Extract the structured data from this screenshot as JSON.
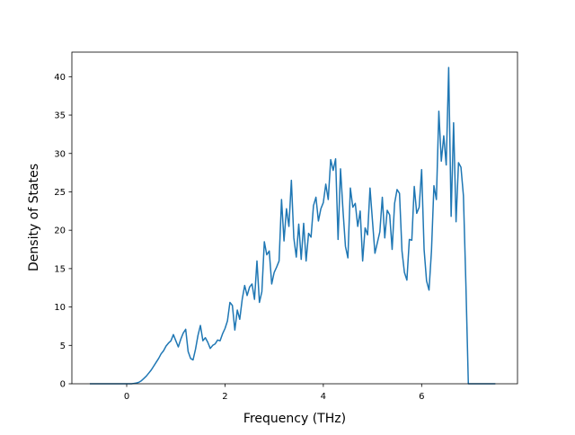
{
  "chart_data": {
    "type": "line",
    "xlabel": "Frequency (THz)",
    "ylabel": "Density of States",
    "x": [
      -0.75,
      -0.7,
      -0.65,
      -0.6,
      -0.55,
      -0.5,
      -0.45,
      -0.4,
      -0.35,
      -0.3,
      -0.25,
      -0.2,
      -0.15,
      -0.1,
      -0.05,
      0,
      0.05,
      0.1,
      0.15,
      0.2,
      0.25,
      0.3,
      0.35,
      0.4,
      0.45,
      0.5,
      0.55,
      0.6,
      0.65,
      0.7,
      0.75,
      0.8,
      0.85,
      0.9,
      0.95,
      1.0,
      1.05,
      1.1,
      1.15,
      1.2,
      1.25,
      1.3,
      1.35,
      1.4,
      1.45,
      1.5,
      1.55,
      1.6,
      1.65,
      1.7,
      1.75,
      1.8,
      1.85,
      1.9,
      1.95,
      2.0,
      2.05,
      2.1,
      2.15,
      2.2,
      2.25,
      2.3,
      2.35,
      2.4,
      2.45,
      2.5,
      2.55,
      2.6,
      2.65,
      2.7,
      2.75,
      2.8,
      2.85,
      2.9,
      2.95,
      3.0,
      3.05,
      3.1,
      3.15,
      3.2,
      3.25,
      3.3,
      3.35,
      3.4,
      3.45,
      3.5,
      3.55,
      3.6,
      3.65,
      3.7,
      3.75,
      3.8,
      3.85,
      3.9,
      3.95,
      4.0,
      4.05,
      4.1,
      4.15,
      4.2,
      4.25,
      4.3,
      4.35,
      4.4,
      4.45,
      4.5,
      4.55,
      4.6,
      4.65,
      4.7,
      4.75,
      4.8,
      4.85,
      4.9,
      4.95,
      5.0,
      5.05,
      5.1,
      5.15,
      5.2,
      5.25,
      5.3,
      5.35,
      5.4,
      5.45,
      5.5,
      5.55,
      5.6,
      5.65,
      5.7,
      5.75,
      5.8,
      5.85,
      5.9,
      5.95,
      6.0,
      6.05,
      6.1,
      6.15,
      6.2,
      6.25,
      6.3,
      6.35,
      6.4,
      6.45,
      6.5,
      6.55,
      6.6,
      6.65,
      6.7,
      6.75,
      6.8,
      6.85,
      6.9,
      6.95,
      7.0,
      7.05,
      7.1,
      7.15,
      7.2,
      7.25,
      7.3,
      7.35,
      7.4,
      7.45,
      7.5
    ],
    "series": [
      {
        "color": "#1f77b4",
        "values": [
          0,
          0,
          0,
          0,
          0,
          0,
          0,
          0,
          0,
          0,
          0,
          0,
          0,
          0,
          0,
          0,
          0,
          0,
          0.05,
          0.1,
          0.2,
          0.4,
          0.7,
          1.0,
          1.4,
          1.8,
          2.3,
          2.8,
          3.3,
          3.9,
          4.3,
          4.9,
          5.3,
          5.6,
          6.4,
          5.6,
          4.8,
          5.8,
          6.6,
          7.1,
          4.2,
          3.3,
          3.1,
          4.5,
          6.3,
          7.6,
          5.6,
          6.0,
          5.4,
          4.6,
          5.0,
          5.2,
          5.7,
          5.6,
          6.5,
          7.2,
          8.2,
          10.6,
          10.2,
          7.0,
          9.6,
          8.4,
          11.0,
          12.8,
          11.5,
          12.6,
          13.0,
          11.0,
          16.0,
          10.6,
          12.0,
          18.5,
          16.8,
          17.3,
          13.0,
          14.5,
          15.2,
          16.0,
          24.0,
          18.6,
          22.8,
          20.5,
          26.5,
          19.0,
          16.5,
          20.8,
          16.2,
          20.9,
          16.0,
          19.6,
          19.1,
          23.2,
          24.3,
          21.2,
          22.8,
          23.6,
          26.0,
          24.0,
          29.2,
          27.8,
          29.3,
          18.8,
          28.0,
          22.6,
          17.9,
          16.4,
          25.5,
          23.0,
          23.5,
          20.5,
          22.5,
          16.0,
          20.3,
          19.4,
          25.5,
          21.2,
          17.0,
          18.4,
          19.8,
          24.3,
          19.0,
          22.6,
          22.0,
          17.5,
          23.5,
          25.3,
          24.8,
          17.3,
          14.5,
          13.5,
          18.8,
          18.7,
          25.7,
          22.2,
          23.0,
          27.9,
          17.5,
          13.4,
          12.2,
          17.3,
          25.8,
          24.0,
          35.5,
          29.0,
          32.3,
          28.5,
          41.2,
          21.8,
          34.0,
          21.1,
          28.8,
          28.2,
          24.5,
          13.0,
          0,
          0,
          0,
          0,
          0,
          0,
          0,
          0,
          0,
          0,
          0,
          0
        ]
      }
    ],
    "xlim": [
      -1.115,
      7.95
    ],
    "ylim": [
      0,
      43.2
    ],
    "xticks": [
      0,
      2,
      4,
      6
    ],
    "yticks": [
      0,
      5,
      10,
      15,
      20,
      25,
      30,
      35,
      40
    ]
  }
}
